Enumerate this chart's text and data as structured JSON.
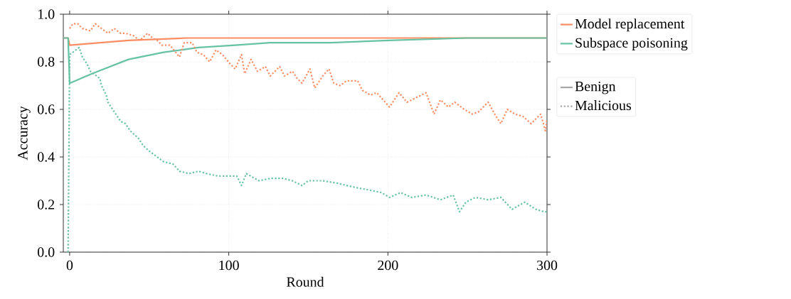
{
  "chart_data": {
    "type": "line",
    "xlabel": "Round",
    "ylabel": "Accuracy",
    "xlim": [
      -4,
      300
    ],
    "ylim": [
      0,
      1
    ],
    "xticks": [
      0,
      100,
      200,
      300
    ],
    "yticks": [
      {
        "value": 0,
        "label": "0.0"
      },
      {
        "value": 0.2,
        "label": "0.2"
      },
      {
        "value": 0.4,
        "label": "0.4"
      },
      {
        "value": 0.6,
        "label": "0.6"
      },
      {
        "value": 0.8,
        "label": "0.8"
      },
      {
        "value": 1,
        "label": "1.0"
      }
    ],
    "grid": true,
    "legend": "top right",
    "annotations": [
      "Benign",
      "Malicious"
    ],
    "series": [
      {
        "name": "Model replacement",
        "color": "#fc8d62",
        "line_style": "solid",
        "x": [
          -4,
          -1,
          0,
          37,
          74,
          104,
          150,
          200,
          250,
          300
        ],
        "values": [
          0.9,
          0.9,
          0.87,
          0.89,
          0.9,
          0.9,
          0.9,
          0.9,
          0.9,
          0.9
        ]
      },
      {
        "name": "Subspace poisoning",
        "color": "#66c2a5",
        "line_style": "solid",
        "x": [
          -4,
          -1,
          0,
          14,
          37,
          59,
          81,
          104,
          126,
          148,
          164,
          201,
          250,
          300
        ],
        "values": [
          0.9,
          0.9,
          0.71,
          0.75,
          0.81,
          0.84,
          0.86,
          0.87,
          0.88,
          0.88,
          0.88,
          0.89,
          0.9,
          0.9
        ]
      },
      {
        "color": "#fc8d62",
        "line_style": "dotted",
        "x": [
          0,
          2,
          5,
          8,
          13,
          16,
          20,
          24,
          28,
          32,
          35,
          40,
          44,
          49,
          52,
          55,
          58,
          63,
          69,
          72,
          77,
          80,
          84,
          88,
          92,
          96,
          101,
          104,
          108,
          110,
          114,
          118,
          123,
          126,
          132,
          135,
          140,
          143,
          146,
          151,
          154,
          159,
          163,
          166,
          170,
          174,
          181,
          184,
          189,
          193,
          197,
          201,
          207,
          212,
          218,
          224,
          229,
          233,
          238,
          242,
          248,
          253,
          257,
          263,
          268,
          271,
          275,
          280,
          285,
          290,
          296,
          299,
          300
        ],
        "values": [
          0.94,
          0.96,
          0.96,
          0.94,
          0.93,
          0.96,
          0.94,
          0.92,
          0.94,
          0.92,
          0.92,
          0.91,
          0.89,
          0.92,
          0.9,
          0.89,
          0.87,
          0.87,
          0.82,
          0.88,
          0.88,
          0.84,
          0.83,
          0.8,
          0.85,
          0.83,
          0.79,
          0.77,
          0.83,
          0.75,
          0.81,
          0.76,
          0.78,
          0.74,
          0.78,
          0.74,
          0.76,
          0.73,
          0.71,
          0.77,
          0.69,
          0.74,
          0.77,
          0.71,
          0.7,
          0.72,
          0.72,
          0.68,
          0.66,
          0.67,
          0.64,
          0.61,
          0.67,
          0.63,
          0.65,
          0.67,
          0.58,
          0.64,
          0.61,
          0.63,
          0.6,
          0.58,
          0.59,
          0.63,
          0.57,
          0.54,
          0.6,
          0.58,
          0.57,
          0.54,
          0.58,
          0.51,
          0.56
        ]
      },
      {
        "color": "#66c2a5",
        "line_style": "dotted",
        "x": [
          -1,
          0,
          2,
          6,
          8,
          11,
          13,
          15,
          19,
          20,
          23,
          24,
          27,
          29,
          32,
          35,
          38,
          43,
          46,
          49,
          55,
          59,
          65,
          69,
          75,
          81,
          86,
          93,
          99,
          105,
          108,
          111,
          119,
          126,
          134,
          140,
          146,
          150,
          159,
          168,
          174,
          181,
          189,
          196,
          201,
          208,
          215,
          224,
          233,
          241,
          245,
          249,
          255,
          263,
          271,
          278,
          286,
          293,
          298,
          300
        ],
        "values": [
          0.0,
          0.83,
          0.84,
          0.86,
          0.82,
          0.79,
          0.76,
          0.75,
          0.73,
          0.7,
          0.66,
          0.63,
          0.6,
          0.58,
          0.55,
          0.54,
          0.51,
          0.48,
          0.45,
          0.43,
          0.4,
          0.38,
          0.37,
          0.34,
          0.33,
          0.34,
          0.33,
          0.32,
          0.32,
          0.32,
          0.28,
          0.33,
          0.3,
          0.31,
          0.31,
          0.3,
          0.28,
          0.3,
          0.3,
          0.29,
          0.28,
          0.27,
          0.26,
          0.25,
          0.23,
          0.25,
          0.23,
          0.24,
          0.22,
          0.24,
          0.17,
          0.21,
          0.23,
          0.22,
          0.23,
          0.18,
          0.21,
          0.18,
          0.17,
          0.17
        ]
      }
    ]
  }
}
